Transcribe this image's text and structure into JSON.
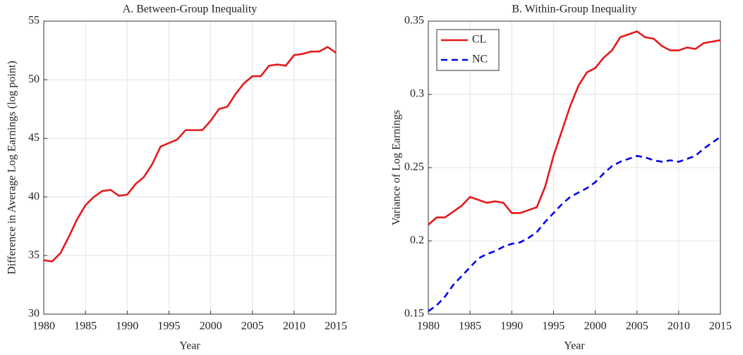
{
  "chart_data": [
    {
      "type": "line",
      "title": "A. Between-Group Inequality",
      "xlabel": "Year",
      "ylabel": "Difference in Average Log Earnings (log point)",
      "x": [
        1980,
        1981,
        1982,
        1983,
        1984,
        1985,
        1986,
        1987,
        1988,
        1989,
        1990,
        1991,
        1992,
        1993,
        1994,
        1995,
        1996,
        1997,
        1998,
        1999,
        2000,
        2001,
        2002,
        2003,
        2004,
        2005,
        2006,
        2007,
        2008,
        2009,
        2010,
        2011,
        2012,
        2013,
        2014,
        2015
      ],
      "series": [
        {
          "color": "#e41a1c",
          "line_style": "solid",
          "values": [
            34.6,
            34.5,
            35.2,
            36.6,
            38.1,
            39.3,
            40.0,
            40.5,
            40.6,
            40.1,
            40.2,
            41.1,
            41.7,
            42.8,
            44.3,
            44.6,
            44.9,
            45.7,
            45.7,
            45.7,
            46.5,
            47.5,
            47.7,
            48.8,
            49.7,
            50.3,
            50.3,
            51.2,
            51.3,
            51.2,
            52.1,
            52.2,
            52.4,
            52.4,
            52.8,
            52.3
          ]
        }
      ],
      "xlim": [
        1980,
        2015
      ],
      "xticks": [
        1980,
        1985,
        1990,
        1995,
        2000,
        2005,
        2010,
        2015
      ],
      "ylim": [
        30,
        55
      ],
      "yticks": [
        30,
        35,
        40,
        45,
        50,
        55
      ],
      "grid": true
    },
    {
      "type": "line",
      "title": "B. Within-Group Inequality",
      "xlabel": "Year",
      "ylabel": "Variance of Log Earnings",
      "x": [
        1980,
        1981,
        1982,
        1983,
        1984,
        1985,
        1986,
        1987,
        1988,
        1989,
        1990,
        1991,
        1992,
        1993,
        1994,
        1995,
        1996,
        1997,
        1998,
        1999,
        2000,
        2001,
        2002,
        2003,
        2004,
        2005,
        2006,
        2007,
        2008,
        2009,
        2010,
        2011,
        2012,
        2013,
        2014,
        2015
      ],
      "series": [
        {
          "name": "CL",
          "color": "#e41a1c",
          "line_style": "solid",
          "values": [
            0.211,
            0.216,
            0.216,
            0.22,
            0.224,
            0.23,
            0.228,
            0.226,
            0.227,
            0.226,
            0.219,
            0.219,
            0.221,
            0.223,
            0.237,
            0.258,
            0.275,
            0.292,
            0.306,
            0.315,
            0.318,
            0.325,
            0.33,
            0.339,
            0.341,
            0.343,
            0.339,
            0.338,
            0.333,
            0.33,
            0.33,
            0.332,
            0.331,
            0.335,
            0.336,
            0.337
          ]
        },
        {
          "name": "NC",
          "color": "#0000ee",
          "line_style": "dashed",
          "values": [
            0.152,
            0.156,
            0.162,
            0.17,
            0.176,
            0.182,
            0.188,
            0.191,
            0.193,
            0.196,
            0.198,
            0.199,
            0.202,
            0.206,
            0.213,
            0.219,
            0.225,
            0.23,
            0.233,
            0.236,
            0.24,
            0.246,
            0.251,
            0.254,
            0.256,
            0.258,
            0.257,
            0.255,
            0.254,
            0.255,
            0.254,
            0.256,
            0.258,
            0.263,
            0.267,
            0.271
          ]
        }
      ],
      "xlim": [
        1980,
        2015
      ],
      "xticks": [
        1980,
        1985,
        1990,
        1995,
        2000,
        2005,
        2010,
        2015
      ],
      "ylim": [
        0.15,
        0.35
      ],
      "yticks": [
        0.15,
        0.2,
        0.25,
        0.3,
        0.35
      ],
      "grid": true,
      "legend": "upper left"
    }
  ]
}
